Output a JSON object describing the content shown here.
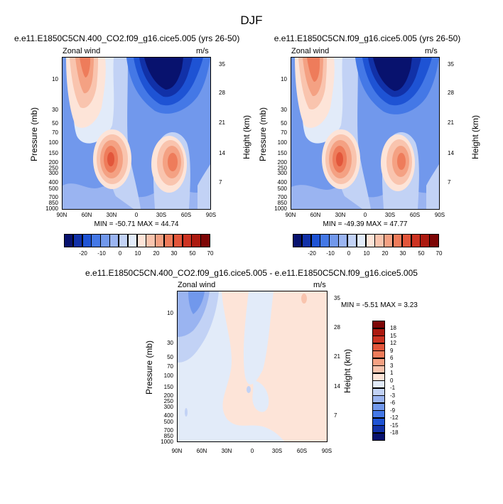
{
  "page_title": "DJF",
  "panels": [
    {
      "title": "e.e11.E1850C5CN.400_CO2.f09_g16.cice5.005 (yrs 26-50)",
      "left_label": "Zonal wind",
      "right_label": "m/s",
      "ylabel_left": "Pressure (mb)",
      "ylabel_right": "Height (km)",
      "minmax": "MIN = -50.71   MAX = 44.74"
    },
    {
      "title": "e.e11.E1850C5CN.f09_g16.cice5.005 (yrs 26-50)",
      "left_label": "Zonal wind",
      "right_label": "m/s",
      "ylabel_left": "Pressure (mb)",
      "ylabel_right": "Height (km)",
      "minmax": "MIN = -49.39   MAX = 47.77"
    },
    {
      "title": "e.e11.E1850C5CN.400_CO2.f09_g16.cice5.005 - e.e11.E1850C5CN.f09_g16.cice5.005",
      "left_label": "Zonal wind",
      "right_label": "m/s",
      "ylabel_left": "Pressure (mb)",
      "ylabel_right": "Height (km)",
      "minmax": "MIN =  -5.51   MAX =   3.23"
    }
  ],
  "chart_data": [
    {
      "type": "heatmap",
      "title": "e.e11.E1850C5CN.400_CO2.f09_g16.cice5.005 (yrs 26-50)",
      "variable": "Zonal wind",
      "units": "m/s",
      "xlabel": "",
      "ylabel": "Pressure (mb)",
      "ylabel_right": "Height (km)",
      "x_ticks": [
        "90N",
        "60N",
        "30N",
        "0",
        "30S",
        "60S",
        "90S"
      ],
      "y_ticks": [
        "10",
        "30",
        "50",
        "70",
        "100",
        "150",
        "200",
        "250",
        "300",
        "400",
        "500",
        "700",
        "850",
        "1000"
      ],
      "y_ticks_right": [
        "35",
        "28",
        "21",
        "14",
        "7"
      ],
      "y_scale": "log",
      "ylim": [
        1000,
        5
      ],
      "colorbar_levels": [
        "-20",
        "-10",
        "0",
        "10",
        "20",
        "30",
        "50",
        "70"
      ],
      "min": -50.71,
      "max": 44.74
    },
    {
      "type": "heatmap",
      "title": "e.e11.E1850C5CN.f09_g16.cice5.005 (yrs 26-50)",
      "variable": "Zonal wind",
      "units": "m/s",
      "xlabel": "",
      "ylabel": "Pressure (mb)",
      "ylabel_right": "Height (km)",
      "x_ticks": [
        "90N",
        "60N",
        "30N",
        "0",
        "30S",
        "60S",
        "90S"
      ],
      "y_ticks": [
        "10",
        "30",
        "50",
        "70",
        "100",
        "150",
        "200",
        "250",
        "300",
        "400",
        "500",
        "700",
        "850",
        "1000"
      ],
      "y_ticks_right": [
        "35",
        "28",
        "21",
        "14",
        "7"
      ],
      "y_scale": "log",
      "ylim": [
        1000,
        5
      ],
      "colorbar_levels": [
        "-20",
        "-10",
        "0",
        "10",
        "20",
        "30",
        "50",
        "70"
      ],
      "min": -49.39,
      "max": 47.77
    },
    {
      "type": "heatmap",
      "title": "e.e11.E1850C5CN.400_CO2.f09_g16.cice5.005 - e.e11.E1850C5CN.f09_g16.cice5.005",
      "variable": "Zonal wind",
      "units": "m/s",
      "xlabel": "",
      "ylabel": "Pressure (mb)",
      "ylabel_right": "Height (km)",
      "x_ticks": [
        "90N",
        "60N",
        "30N",
        "0",
        "30S",
        "60S",
        "90S"
      ],
      "y_ticks": [
        "10",
        "30",
        "50",
        "70",
        "100",
        "150",
        "200",
        "250",
        "300",
        "400",
        "500",
        "700",
        "850",
        "1000"
      ],
      "y_ticks_right": [
        "35",
        "28",
        "21",
        "14",
        "7"
      ],
      "y_scale": "log",
      "ylim": [
        1000,
        5
      ],
      "colorbar_levels": [
        "18",
        "15",
        "12",
        "9",
        "6",
        "3",
        "1",
        "0",
        "-1",
        "-3",
        "-6",
        "-9",
        "-12",
        "-15",
        "-18"
      ],
      "min": -5.51,
      "max": 3.23
    }
  ],
  "colorbar_top": {
    "labels": [
      "-20",
      "-10",
      "0",
      "10",
      "20",
      "30",
      "50",
      "70"
    ],
    "colors": [
      "#08126e",
      "#1131a8",
      "#1e53d4",
      "#4478e6",
      "#7198ec",
      "#9ab4f1",
      "#c2d2f5",
      "#e2ebf9",
      "#fde4d8",
      "#f9c4ae",
      "#f4a183",
      "#ee7c5b",
      "#e2563b",
      "#cc3322",
      "#ac1a10",
      "#7d0606"
    ]
  },
  "colorbar_bottom": {
    "labels": [
      "18",
      "15",
      "12",
      "9",
      "6",
      "3",
      "1",
      "0",
      "-1",
      "-3",
      "-6",
      "-9",
      "-12",
      "-15",
      "-18"
    ],
    "colors": [
      "#7d0606",
      "#ac1a10",
      "#cc3322",
      "#e2563b",
      "#ee7c5b",
      "#f4a183",
      "#f9c4ae",
      "#fde4d8",
      "#e2ebf9",
      "#c2d2f5",
      "#9ab4f1",
      "#7198ec",
      "#4478e6",
      "#1e53d4",
      "#1131a8",
      "#08126e"
    ]
  }
}
